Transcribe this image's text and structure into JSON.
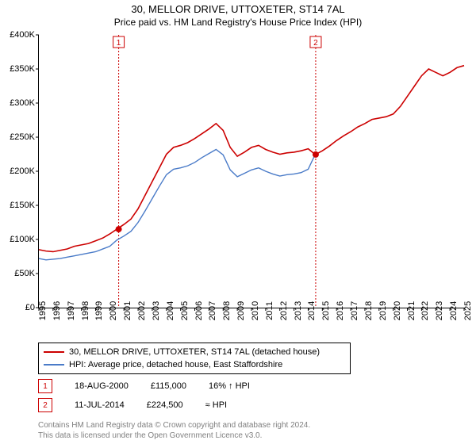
{
  "title1": "30, MELLOR DRIVE, UTTOXETER, ST14 7AL",
  "title2": "Price paid vs. HM Land Registry's House Price Index (HPI)",
  "chart": {
    "type": "line",
    "background_color": "#ffffff",
    "grid_color": "#ffffff",
    "axis_color": "#000000",
    "xlim": [
      1995,
      2025
    ],
    "ylim": [
      0,
      400000
    ],
    "yticks": [
      0,
      50000,
      100000,
      150000,
      200000,
      250000,
      300000,
      350000,
      400000
    ],
    "ytick_labels": [
      "£0",
      "£50K",
      "£100K",
      "£150K",
      "£200K",
      "£250K",
      "£300K",
      "£350K",
      "£400K"
    ],
    "xticks": [
      1995,
      1996,
      1997,
      1998,
      1999,
      2000,
      2001,
      2002,
      2003,
      2004,
      2005,
      2006,
      2007,
      2008,
      2009,
      2010,
      2011,
      2012,
      2013,
      2014,
      2015,
      2016,
      2017,
      2018,
      2019,
      2020,
      2021,
      2022,
      2023,
      2024,
      2025
    ],
    "label_fontsize": 11,
    "series": [
      {
        "name": "subject",
        "label": "30, MELLOR DRIVE, UTTOXETER, ST14 7AL (detached house)",
        "color": "#cc0000",
        "line_width": 1.6,
        "data": [
          [
            1995.0,
            85000
          ],
          [
            1995.5,
            83000
          ],
          [
            1996.0,
            82000
          ],
          [
            1996.5,
            84000
          ],
          [
            1997.0,
            86000
          ],
          [
            1997.5,
            90000
          ],
          [
            1998.0,
            92000
          ],
          [
            1998.5,
            94000
          ],
          [
            1999.0,
            98000
          ],
          [
            1999.5,
            102000
          ],
          [
            2000.0,
            108000
          ],
          [
            2000.5,
            115000
          ],
          [
            2001.0,
            122000
          ],
          [
            2001.5,
            130000
          ],
          [
            2002.0,
            145000
          ],
          [
            2002.5,
            165000
          ],
          [
            2003.0,
            185000
          ],
          [
            2003.5,
            205000
          ],
          [
            2004.0,
            225000
          ],
          [
            2004.5,
            235000
          ],
          [
            2005.0,
            238000
          ],
          [
            2005.5,
            242000
          ],
          [
            2006.0,
            248000
          ],
          [
            2006.5,
            255000
          ],
          [
            2007.0,
            262000
          ],
          [
            2007.5,
            270000
          ],
          [
            2008.0,
            260000
          ],
          [
            2008.5,
            235000
          ],
          [
            2009.0,
            222000
          ],
          [
            2009.5,
            228000
          ],
          [
            2010.0,
            235000
          ],
          [
            2010.5,
            238000
          ],
          [
            2011.0,
            232000
          ],
          [
            2011.5,
            228000
          ],
          [
            2012.0,
            225000
          ],
          [
            2012.5,
            227000
          ],
          [
            2013.0,
            228000
          ],
          [
            2013.5,
            230000
          ],
          [
            2014.0,
            233000
          ],
          [
            2014.5,
            224500
          ],
          [
            2015.0,
            230000
          ],
          [
            2015.5,
            237000
          ],
          [
            2016.0,
            245000
          ],
          [
            2016.5,
            252000
          ],
          [
            2017.0,
            258000
          ],
          [
            2017.5,
            265000
          ],
          [
            2018.0,
            270000
          ],
          [
            2018.5,
            276000
          ],
          [
            2019.0,
            278000
          ],
          [
            2019.5,
            280000
          ],
          [
            2020.0,
            284000
          ],
          [
            2020.5,
            295000
          ],
          [
            2021.0,
            310000
          ],
          [
            2021.5,
            325000
          ],
          [
            2022.0,
            340000
          ],
          [
            2022.5,
            350000
          ],
          [
            2023.0,
            345000
          ],
          [
            2023.5,
            340000
          ],
          [
            2024.0,
            345000
          ],
          [
            2024.5,
            352000
          ],
          [
            2025.0,
            355000
          ]
        ]
      },
      {
        "name": "hpi",
        "label": "HPI: Average price, detached house, East Staffordshire",
        "color": "#4a7bc8",
        "line_width": 1.4,
        "data": [
          [
            1995.0,
            72000
          ],
          [
            1995.5,
            70000
          ],
          [
            1996.0,
            71000
          ],
          [
            1996.5,
            72000
          ],
          [
            1997.0,
            74000
          ],
          [
            1997.5,
            76000
          ],
          [
            1998.0,
            78000
          ],
          [
            1998.5,
            80000
          ],
          [
            1999.0,
            82000
          ],
          [
            1999.5,
            86000
          ],
          [
            2000.0,
            90000
          ],
          [
            2000.5,
            99000
          ],
          [
            2001.0,
            105000
          ],
          [
            2001.5,
            112000
          ],
          [
            2002.0,
            125000
          ],
          [
            2002.5,
            142000
          ],
          [
            2003.0,
            160000
          ],
          [
            2003.5,
            178000
          ],
          [
            2004.0,
            195000
          ],
          [
            2004.5,
            203000
          ],
          [
            2005.0,
            205000
          ],
          [
            2005.5,
            208000
          ],
          [
            2006.0,
            213000
          ],
          [
            2006.5,
            220000
          ],
          [
            2007.0,
            226000
          ],
          [
            2007.5,
            232000
          ],
          [
            2008.0,
            224000
          ],
          [
            2008.5,
            202000
          ],
          [
            2009.0,
            192000
          ],
          [
            2009.5,
            197000
          ],
          [
            2010.0,
            202000
          ],
          [
            2010.5,
            205000
          ],
          [
            2011.0,
            200000
          ],
          [
            2011.5,
            196000
          ],
          [
            2012.0,
            193000
          ],
          [
            2012.5,
            195000
          ],
          [
            2013.0,
            196000
          ],
          [
            2013.5,
            198000
          ],
          [
            2014.0,
            203000
          ],
          [
            2014.5,
            225000
          ]
        ]
      }
    ],
    "markers": [
      {
        "x": 2000.63,
        "y": 115000,
        "color": "#cc0000",
        "radius": 4
      },
      {
        "x": 2014.53,
        "y": 224500,
        "color": "#cc0000",
        "radius": 4
      }
    ],
    "vlines": [
      {
        "x": 2000.63,
        "color": "#cc0000",
        "dash": "2,2",
        "width": 1,
        "badge": "1",
        "badge_color": "#cc0000"
      },
      {
        "x": 2014.53,
        "color": "#cc0000",
        "dash": "2,2",
        "width": 1,
        "badge": "2",
        "badge_color": "#cc0000"
      }
    ]
  },
  "legend": {
    "border_color": "#000000",
    "items": [
      {
        "color": "#cc0000",
        "label": "30, MELLOR DRIVE, UTTOXETER, ST14 7AL (detached house)"
      },
      {
        "color": "#4a7bc8",
        "label": "HPI: Average price, detached house, East Staffordshire"
      }
    ]
  },
  "transactions": [
    {
      "n": "1",
      "color": "#cc0000",
      "date": "18-AUG-2000",
      "price": "£115,000",
      "delta": "16% ↑ HPI"
    },
    {
      "n": "2",
      "color": "#cc0000",
      "date": "11-JUL-2014",
      "price": "£224,500",
      "delta": "≈ HPI"
    }
  ],
  "footer_line1": "Contains HM Land Registry data © Crown copyright and database right 2024.",
  "footer_line2": "This data is licensed under the Open Government Licence v3.0."
}
